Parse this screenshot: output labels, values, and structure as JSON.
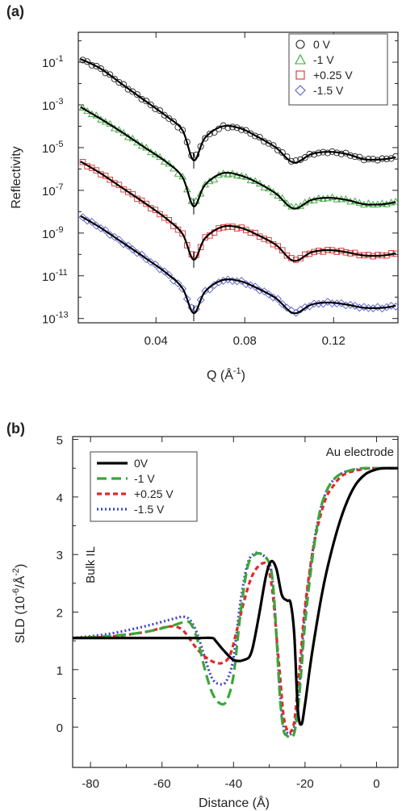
{
  "chart_data": [
    {
      "panel_label": "(a)",
      "type": "line",
      "xlabel": "Q (Å",
      "xlabel_sup": "-1",
      "xlabel_end": ")",
      "ylabel": "Reflectivity",
      "xlim": [
        0.005,
        0.149
      ],
      "ylim_log10": [
        -13.2,
        0.4
      ],
      "x_ticks": [
        0.04,
        0.08,
        0.12
      ],
      "x_tick_labels": [
        "0.04",
        "0.08",
        "0.12"
      ],
      "y_tick_exponents": [
        -1,
        -3,
        -5,
        -7,
        -9,
        -11,
        -13
      ],
      "y_tick_base": "10",
      "legend_position": "top-right",
      "marker_legend": [
        {
          "label": "0 V",
          "color": "#222222",
          "marker": "circle"
        },
        {
          "label": "-1 V",
          "color": "#3aa63a",
          "marker": "triangle"
        },
        {
          "label": "+0.25 V",
          "color": "#d8322f",
          "marker": "square"
        },
        {
          "label": "-1.5 V",
          "color": "#5b5fc7",
          "marker": "diamond"
        }
      ],
      "fit_color": "#000000",
      "series": [
        {
          "name": "0 V",
          "x": [
            0.006,
            0.015,
            0.025,
            0.035,
            0.045,
            0.052,
            0.057,
            0.062,
            0.07,
            0.078,
            0.085,
            0.094,
            0.102,
            0.11,
            0.118,
            0.126,
            0.134,
            0.142,
            0.148
          ],
          "y_log10": [
            -0.85,
            -1.3,
            -2.05,
            -2.8,
            -3.55,
            -4.2,
            -5.6,
            -4.55,
            -4.0,
            -4.1,
            -4.45,
            -5.0,
            -5.7,
            -5.3,
            -5.2,
            -5.3,
            -5.55,
            -5.55,
            -5.45
          ]
        },
        {
          "name": "-1 V",
          "x": [
            0.006,
            0.015,
            0.025,
            0.035,
            0.045,
            0.052,
            0.057,
            0.062,
            0.07,
            0.078,
            0.085,
            0.094,
            0.102,
            0.11,
            0.118,
            0.126,
            0.134,
            0.142,
            0.148
          ],
          "y_log10": [
            -3.1,
            -3.65,
            -4.3,
            -5.0,
            -5.7,
            -6.4,
            -7.75,
            -6.75,
            -6.2,
            -6.3,
            -6.6,
            -7.15,
            -7.85,
            -7.45,
            -7.35,
            -7.45,
            -7.65,
            -7.65,
            -7.55
          ]
        },
        {
          "name": "+0.25 V",
          "x": [
            0.006,
            0.015,
            0.025,
            0.035,
            0.045,
            0.052,
            0.057,
            0.062,
            0.07,
            0.078,
            0.085,
            0.094,
            0.102,
            0.11,
            0.118,
            0.126,
            0.134,
            0.142,
            0.148
          ],
          "y_log10": [
            -5.65,
            -6.2,
            -6.9,
            -7.6,
            -8.35,
            -9.05,
            -10.25,
            -9.25,
            -8.7,
            -8.75,
            -9.05,
            -9.55,
            -10.3,
            -9.9,
            -9.8,
            -9.9,
            -10.05,
            -10.05,
            -9.95
          ]
        },
        {
          "name": "-1.5 V",
          "x": [
            0.006,
            0.015,
            0.025,
            0.035,
            0.045,
            0.052,
            0.057,
            0.062,
            0.07,
            0.078,
            0.085,
            0.094,
            0.102,
            0.11,
            0.118,
            0.126,
            0.134,
            0.142,
            0.148
          ],
          "y_log10": [
            -8.2,
            -8.75,
            -9.45,
            -10.15,
            -10.9,
            -11.6,
            -12.75,
            -11.75,
            -11.2,
            -11.25,
            -11.55,
            -12.05,
            -12.75,
            -12.35,
            -12.25,
            -12.35,
            -12.5,
            -12.5,
            -12.4
          ]
        }
      ]
    },
    {
      "panel_label": "(b)",
      "type": "line",
      "xlabel": "Distance (Å)",
      "ylabel": "SLD (10",
      "ylabel_sup": "-6",
      "ylabel_mid": "/Å",
      "ylabel_sup2": "-2",
      "ylabel_end": ")",
      "xlim": [
        -85,
        6
      ],
      "ylim": [
        -0.7,
        5.05
      ],
      "x_ticks": [
        -80,
        -60,
        -40,
        -20,
        0
      ],
      "x_tick_labels": [
        "-80",
        "-60",
        "-40",
        "-20",
        "0"
      ],
      "y_ticks": [
        0,
        1,
        2,
        3,
        4,
        5
      ],
      "y_tick_labels": [
        "0",
        "1",
        "2",
        "3",
        "4",
        "5"
      ],
      "annotations": [
        "Au electrode",
        "Bulk IL"
      ],
      "legend_position": "top-left",
      "series": [
        {
          "name": "0V",
          "color": "#000000",
          "dash": "solid",
          "x": [
            -85,
            -70,
            -60,
            -50,
            -46,
            -45,
            -43,
            -40,
            -37,
            -35,
            -33,
            -31,
            -29.5,
            -28,
            -26.5,
            -25,
            -24,
            -23,
            -22,
            -21,
            -20,
            -18,
            -15,
            -12,
            -9,
            -6,
            -3,
            0,
            2,
            6
          ],
          "y": [
            1.55,
            1.55,
            1.55,
            1.55,
            1.55,
            1.5,
            1.35,
            1.17,
            1.17,
            1.3,
            1.9,
            2.6,
            2.88,
            2.75,
            2.3,
            2.2,
            2.15,
            1.6,
            0.3,
            0.05,
            0.4,
            1.3,
            2.4,
            3.2,
            3.8,
            4.2,
            4.4,
            4.48,
            4.5,
            4.5
          ]
        },
        {
          "name": "-1 V",
          "color": "#3aa63a",
          "dash": "long",
          "x": [
            -85,
            -75,
            -65,
            -58,
            -54,
            -52,
            -50,
            -48,
            -46,
            -44,
            -42,
            -40,
            -38,
            -36,
            -34,
            -32,
            -30,
            -29,
            -28,
            -27,
            -26,
            -25,
            -24,
            -23,
            -22,
            -21,
            -20,
            -18,
            -16,
            -14,
            -12,
            -10,
            -7,
            -4,
            0,
            6
          ],
          "y": [
            1.55,
            1.58,
            1.65,
            1.75,
            1.82,
            1.8,
            1.5,
            1.0,
            0.6,
            0.42,
            0.45,
            0.9,
            2.0,
            2.8,
            3.0,
            3.0,
            2.85,
            2.5,
            1.6,
            0.5,
            -0.05,
            -0.15,
            -0.18,
            -0.1,
            0.3,
            1.0,
            1.8,
            2.9,
            3.7,
            4.1,
            4.3,
            4.4,
            4.47,
            4.5,
            4.5,
            4.5
          ]
        },
        {
          "name": "+0.25 V",
          "color": "#e02a2a",
          "dash": "short",
          "x": [
            -85,
            -75,
            -65,
            -58,
            -55,
            -53,
            -51,
            -49,
            -47,
            -45,
            -43,
            -41,
            -39,
            -37,
            -35,
            -33,
            -31,
            -30,
            -29,
            -28,
            -27,
            -26,
            -25,
            -24,
            -23,
            -22,
            -21,
            -20,
            -18,
            -16,
            -14,
            -12,
            -10,
            -8,
            -5,
            -2,
            0,
            6
          ],
          "y": [
            1.55,
            1.57,
            1.65,
            1.75,
            1.72,
            1.6,
            1.42,
            1.28,
            1.18,
            1.12,
            1.12,
            1.25,
            1.7,
            2.2,
            2.6,
            2.8,
            2.85,
            2.7,
            2.3,
            1.6,
            0.9,
            0.2,
            -0.05,
            -0.08,
            0.1,
            0.7,
            1.4,
            2.1,
            3.0,
            3.6,
            4.0,
            4.2,
            4.35,
            4.42,
            4.47,
            4.5,
            4.5,
            4.5
          ]
        },
        {
          "name": "-1.5 V",
          "color": "#3f46c4",
          "dash": "dot",
          "x": [
            -85,
            -75,
            -65,
            -57,
            -54,
            -52,
            -50,
            -48,
            -46,
            -44,
            -42,
            -40,
            -38,
            -36,
            -34,
            -32,
            -30,
            -29,
            -28,
            -27,
            -26,
            -25,
            -24,
            -23,
            -22,
            -21,
            -20,
            -18,
            -16,
            -14,
            -12,
            -10,
            -8,
            -5,
            -2,
            0,
            6
          ],
          "y": [
            1.55,
            1.62,
            1.75,
            1.88,
            1.92,
            1.85,
            1.6,
            1.2,
            0.85,
            0.75,
            0.8,
            1.2,
            2.2,
            2.85,
            3.02,
            3.0,
            2.85,
            2.5,
            1.6,
            0.6,
            0.0,
            -0.1,
            -0.12,
            0.0,
            0.4,
            1.2,
            2.0,
            3.0,
            3.7,
            4.1,
            4.3,
            4.4,
            4.45,
            4.48,
            4.5,
            4.5,
            4.5
          ]
        }
      ]
    }
  ]
}
